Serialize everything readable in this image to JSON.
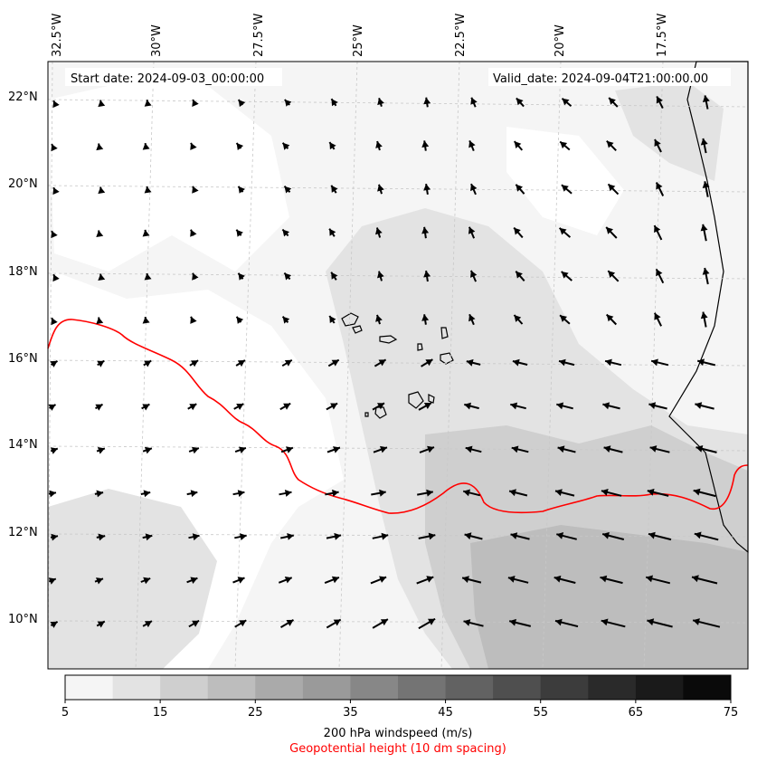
{
  "header": {
    "start_label": "Start date: 2024-09-03_00:00:00",
    "valid_label": "Valid_date: 2024-09-04T21:00:00.00"
  },
  "axes": {
    "lon_labels": [
      "32.5°W",
      "30°W",
      "27.5°W",
      "25°W",
      "22.5°W",
      "20°W",
      "17.5°W"
    ],
    "lat_labels": [
      "22°N",
      "20°N",
      "18°N",
      "16°N",
      "14°N",
      "12°N",
      "10°N"
    ]
  },
  "colorbar": {
    "tick_labels": [
      "5",
      "15",
      "25",
      "35",
      "45",
      "55",
      "65",
      "75"
    ],
    "colors": [
      "#f5f5f5",
      "#e3e3e3",
      "#cfcfcf",
      "#bdbdbd",
      "#aaaaaa",
      "#9a9a9a",
      "#878787",
      "#747474",
      "#626262",
      "#4f4f4f",
      "#3c3c3c",
      "#2a2a2a",
      "#1a1a1a",
      "#0a0a0a"
    ],
    "label": "200 hPa windspeed (m/s)",
    "sublabel": "Geopotential height (10 dm spacing)"
  },
  "colors": {
    "contour": "#ff0000",
    "coast": "#000000",
    "arrow": "#000000",
    "grid": "#c8c8c8"
  }
}
